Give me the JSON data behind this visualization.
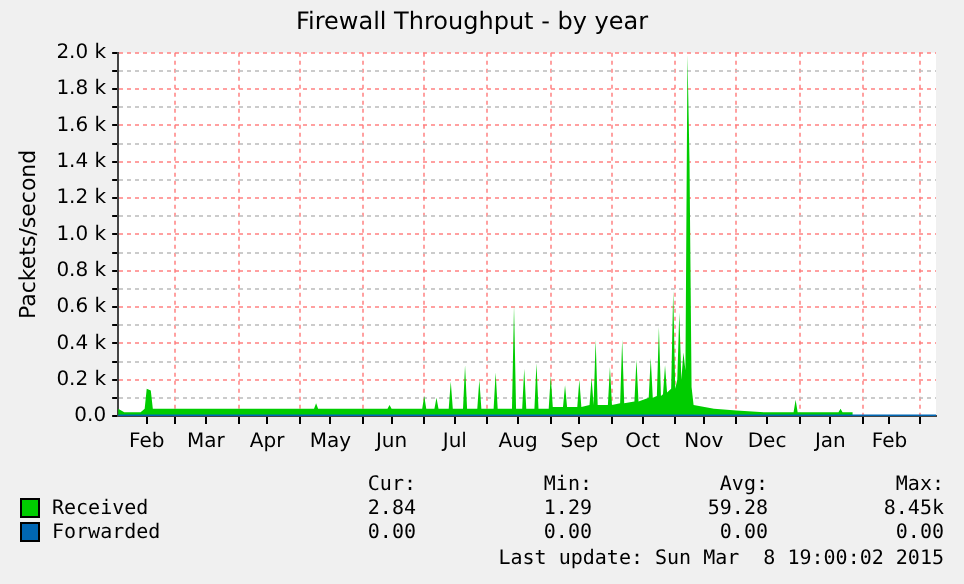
{
  "chart_data": {
    "type": "area",
    "title": "Firewall Throughput - by year",
    "ylabel": "Packets/second",
    "xlim": [
      "2014-02-01",
      "2015-03-08T19:00"
    ],
    "xticks": [
      {
        "value": "2014-02-15",
        "label": "Feb"
      },
      {
        "value": "2014-03-01",
        "label": null
      },
      {
        "value": "2014-03-16",
        "label": "Mar"
      },
      {
        "value": "2014-04-01",
        "label": null
      },
      {
        "value": "2014-04-15",
        "label": "Apr"
      },
      {
        "value": "2014-05-01",
        "label": null
      },
      {
        "value": "2014-05-16",
        "label": "May"
      },
      {
        "value": "2014-06-01",
        "label": null
      },
      {
        "value": "2014-06-15",
        "label": "Jun"
      },
      {
        "value": "2014-07-01",
        "label": null
      },
      {
        "value": "2014-07-16",
        "label": "Jul"
      },
      {
        "value": "2014-08-01",
        "label": null
      },
      {
        "value": "2014-08-16",
        "label": "Aug"
      },
      {
        "value": "2014-09-01",
        "label": null
      },
      {
        "value": "2014-09-15",
        "label": "Sep"
      },
      {
        "value": "2014-10-01",
        "label": null
      },
      {
        "value": "2014-10-16",
        "label": "Oct"
      },
      {
        "value": "2014-11-01",
        "label": null
      },
      {
        "value": "2014-11-15",
        "label": "Nov"
      },
      {
        "value": "2014-12-01",
        "label": null
      },
      {
        "value": "2014-12-16",
        "label": "Dec"
      },
      {
        "value": "2015-01-01",
        "label": null
      },
      {
        "value": "2015-01-16",
        "label": "Jan"
      },
      {
        "value": "2015-02-01",
        "label": null
      },
      {
        "value": "2015-02-14",
        "label": "Feb"
      },
      {
        "value": "2015-03-01",
        "label": null
      }
    ],
    "ylim": [
      0,
      2000
    ],
    "yticks": [
      {
        "value": 0,
        "label": "0.0"
      },
      {
        "value": 100,
        "label": null
      },
      {
        "value": 200,
        "label": "0.2 k"
      },
      {
        "value": 300,
        "label": null
      },
      {
        "value": 400,
        "label": "0.4 k"
      },
      {
        "value": 500,
        "label": null
      },
      {
        "value": 600,
        "label": "0.6 k"
      },
      {
        "value": 700,
        "label": null
      },
      {
        "value": 800,
        "label": "0.8 k"
      },
      {
        "value": 900,
        "label": null
      },
      {
        "value": 1000,
        "label": "1.0 k"
      },
      {
        "value": 1100,
        "label": null
      },
      {
        "value": 1200,
        "label": "1.2 k"
      },
      {
        "value": 1300,
        "label": null
      },
      {
        "value": 1400,
        "label": "1.4 k"
      },
      {
        "value": 1500,
        "label": null
      },
      {
        "value": 1600,
        "label": "1.6 k"
      },
      {
        "value": 1700,
        "label": null
      },
      {
        "value": 1800,
        "label": "1.8 k"
      },
      {
        "value": 1900,
        "label": null
      },
      {
        "value": 2000,
        "label": "2.0 k"
      }
    ],
    "grid": true,
    "legend": "bottom",
    "marker": "none",
    "line_style": "solid",
    "series": [
      {
        "name": "Received",
        "color": "#00cc00",
        "x": [
          "2014-02-01",
          "2014-02-04",
          "2014-02-12",
          "2014-02-14",
          "2014-02-15",
          "2014-02-17",
          "2014-02-18",
          "2014-03-15",
          "2014-04-15",
          "2014-05-08",
          "2014-05-09",
          "2014-05-10",
          "2014-06-13",
          "2014-06-14",
          "2014-06-15",
          "2014-06-30",
          "2014-07-01",
          "2014-07-02",
          "2014-07-06",
          "2014-07-07",
          "2014-07-08",
          "2014-07-13",
          "2014-07-14",
          "2014-07-15",
          "2014-07-20",
          "2014-07-21",
          "2014-07-22",
          "2014-07-27",
          "2014-07-28",
          "2014-07-29",
          "2014-08-04",
          "2014-08-05",
          "2014-08-06",
          "2014-08-13",
          "2014-08-14",
          "2014-08-15",
          "2014-08-18",
          "2014-08-19",
          "2014-08-20",
          "2014-08-24",
          "2014-08-25",
          "2014-08-26",
          "2014-08-31",
          "2014-09-01",
          "2014-09-02",
          "2014-09-07",
          "2014-09-08",
          "2014-09-09",
          "2014-09-14",
          "2014-09-15",
          "2014-09-16",
          "2014-09-20",
          "2014-09-21",
          "2014-09-22",
          "2014-09-23",
          "2014-09-24",
          "2014-09-29",
          "2014-09-30",
          "2014-10-01",
          "2014-10-05",
          "2014-10-06",
          "2014-10-07",
          "2014-10-12",
          "2014-10-13",
          "2014-10-14",
          "2014-10-19",
          "2014-10-20",
          "2014-10-21",
          "2014-10-23",
          "2014-10-24",
          "2014-10-25",
          "2014-10-26",
          "2014-10-27",
          "2014-10-28",
          "2014-10-30",
          "2014-10-31",
          "2014-11-01",
          "2014-11-02",
          "2014-11-03",
          "2014-11-04",
          "2014-11-05",
          "2014-11-06",
          "2014-11-07",
          "2014-11-08",
          "2014-11-09",
          "2014-11-10",
          "2014-11-20",
          "2014-12-01",
          "2014-12-15",
          "2014-12-29",
          "2014-12-30",
          "2014-12-31",
          "2015-01-20",
          "2015-01-21",
          "2015-01-22",
          "2015-01-27"
        ],
        "values": [
          40,
          20,
          20,
          40,
          150,
          140,
          40,
          40,
          40,
          40,
          70,
          40,
          40,
          60,
          40,
          40,
          110,
          40,
          40,
          100,
          40,
          40,
          190,
          40,
          40,
          280,
          40,
          40,
          200,
          40,
          40,
          240,
          40,
          40,
          610,
          40,
          40,
          260,
          40,
          40,
          290,
          40,
          40,
          220,
          50,
          50,
          170,
          50,
          50,
          200,
          50,
          60,
          210,
          60,
          420,
          60,
          60,
          270,
          60,
          70,
          420,
          70,
          80,
          310,
          80,
          100,
          320,
          100,
          110,
          490,
          110,
          120,
          280,
          130,
          150,
          690,
          150,
          200,
          570,
          200,
          350,
          250,
          1990,
          1400,
          160,
          60,
          40,
          30,
          20,
          20,
          90,
          20,
          20,
          40,
          20,
          20
        ]
      },
      {
        "name": "Forwarded",
        "color": "#0066b3",
        "type": "line",
        "x": [
          "2014-02-01",
          "2015-03-08T19:00"
        ],
        "values": [
          0,
          0
        ]
      }
    ],
    "annotations": [
      "Cur:",
      "Min:",
      "Avg:",
      "Max:",
      "2.84",
      "1.29",
      "59.28",
      "8.45k",
      "0.00",
      "0.00",
      "0.00",
      "0.00",
      "Last update: Sun Mar  8 19:00:02 2015"
    ]
  }
}
